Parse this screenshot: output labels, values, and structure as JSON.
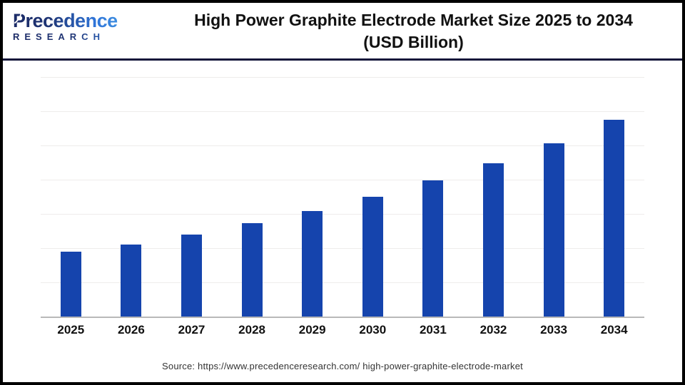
{
  "header": {
    "logo": {
      "brand": "Precedence",
      "subbrand": "RESEARCH",
      "navy": "#1b2a66",
      "blue": "#2f74d8"
    },
    "title_line1": "High Power Graphite Electrode Market Size 2025 to 2034",
    "title_line2": "(USD Billion)"
  },
  "chart_data": {
    "type": "bar",
    "title": "High Power Graphite Electrode Market Size 2025 to 2034 (USD Billion)",
    "categories": [
      "2025",
      "2026",
      "2027",
      "2028",
      "2029",
      "2030",
      "2031",
      "2032",
      "2033",
      "2034"
    ],
    "values": [
      1.89,
      2.11,
      2.39,
      2.72,
      3.09,
      3.49,
      3.97,
      4.47,
      5.07,
      5.76
    ],
    "unit": "USD Billion",
    "xlabel": "",
    "ylabel": "",
    "ylim": [
      0,
      7
    ],
    "grid": "horizontal",
    "gridline_interval": 1,
    "y_tick_labels_shown": false,
    "legend": "none",
    "bar_color": "#1544ad",
    "gridline_color": "#eeeceb",
    "axis_line_color": "#b9b9b9"
  },
  "footer": {
    "source": "Source: https://www.precedenceresearch.com/ high-power-graphite-electrode-market"
  }
}
